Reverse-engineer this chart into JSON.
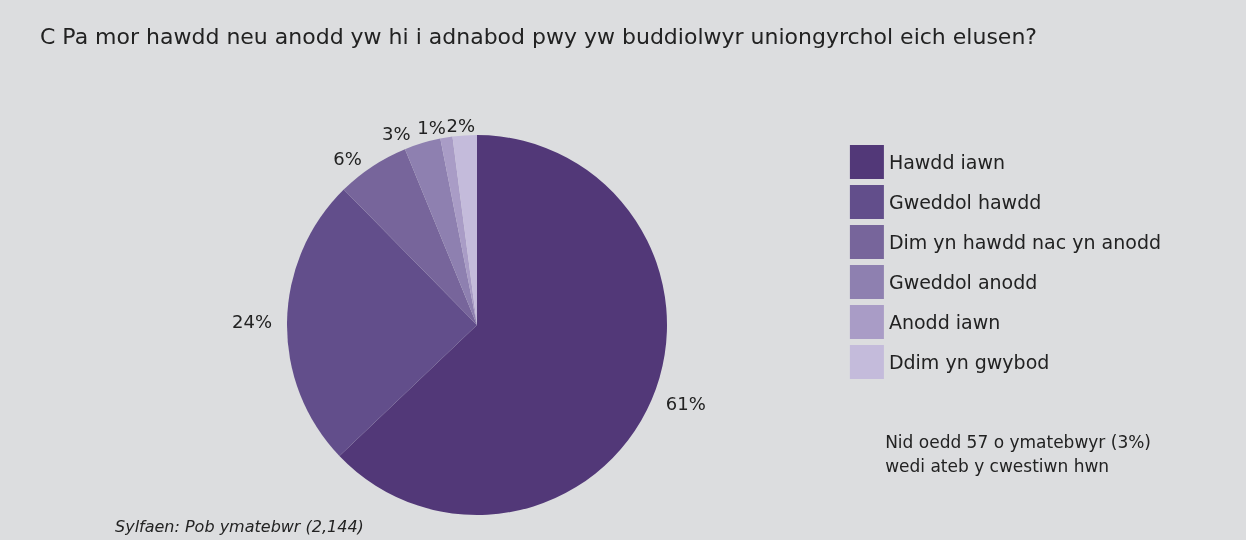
{
  "chart_data": {
    "type": "pie",
    "title": "C Pa mor hawdd neu anodd yw hi i adnabod pwy yw buddiolwyr uniongyrchol eich elusen?",
    "categories": [
      "Hawdd iawn",
      "Gweddol hawdd",
      "Dim yn hawdd nac yn anodd",
      "Gweddol anodd",
      "Anodd iawn",
      "Ddim yn gwybod"
    ],
    "values": [
      61,
      24,
      6,
      3,
      1,
      2
    ],
    "colors": [
      "#523878",
      "#624e8b",
      "#77659b",
      "#8e80b0",
      "#a99cc6",
      "#c4bbdb"
    ],
    "value_labels": [
      "61%",
      "24%",
      "6%",
      "3%",
      "1%",
      "2%"
    ],
    "legend": "right",
    "annotations": [
      "Nid oedd 57 o ymatebwyr (3%)\nwedi ateb y cwestiwn hwn",
      "Sylfaen: Pob ymatebwr (2,144)"
    ]
  }
}
